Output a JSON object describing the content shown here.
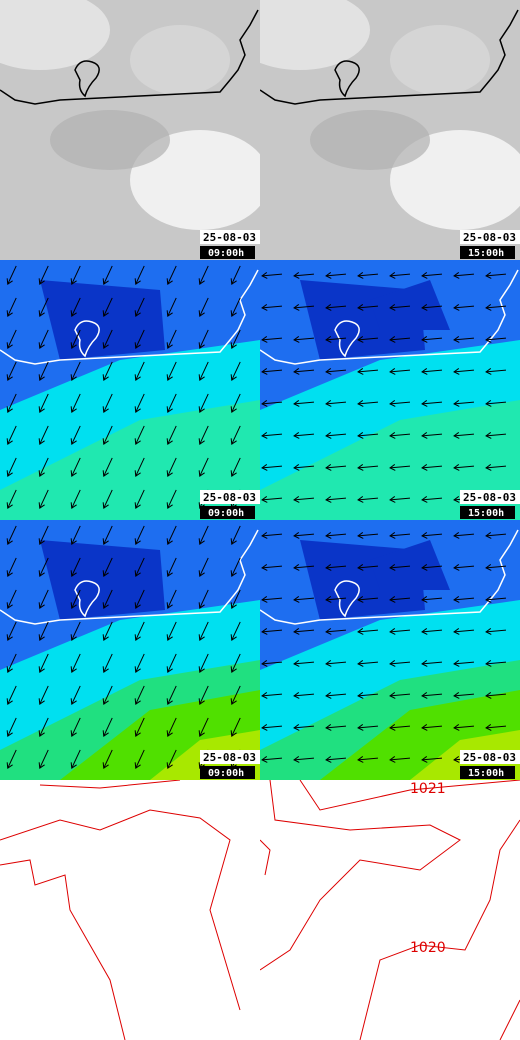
{
  "panels": [
    {
      "date": "25-08-03",
      "time": "09:00h"
    },
    {
      "date": "25-08-03",
      "time": "15:00h"
    },
    {
      "date": "25-08-03",
      "time": "09:00h"
    },
    {
      "date": "25-08-03",
      "time": "15:00h"
    },
    {
      "date": "25-08-03",
      "time": "09:00h"
    },
    {
      "date": "25-08-03",
      "time": "15:00h"
    }
  ],
  "isobars": {
    "labels": [
      "1021",
      "1020"
    ]
  }
}
